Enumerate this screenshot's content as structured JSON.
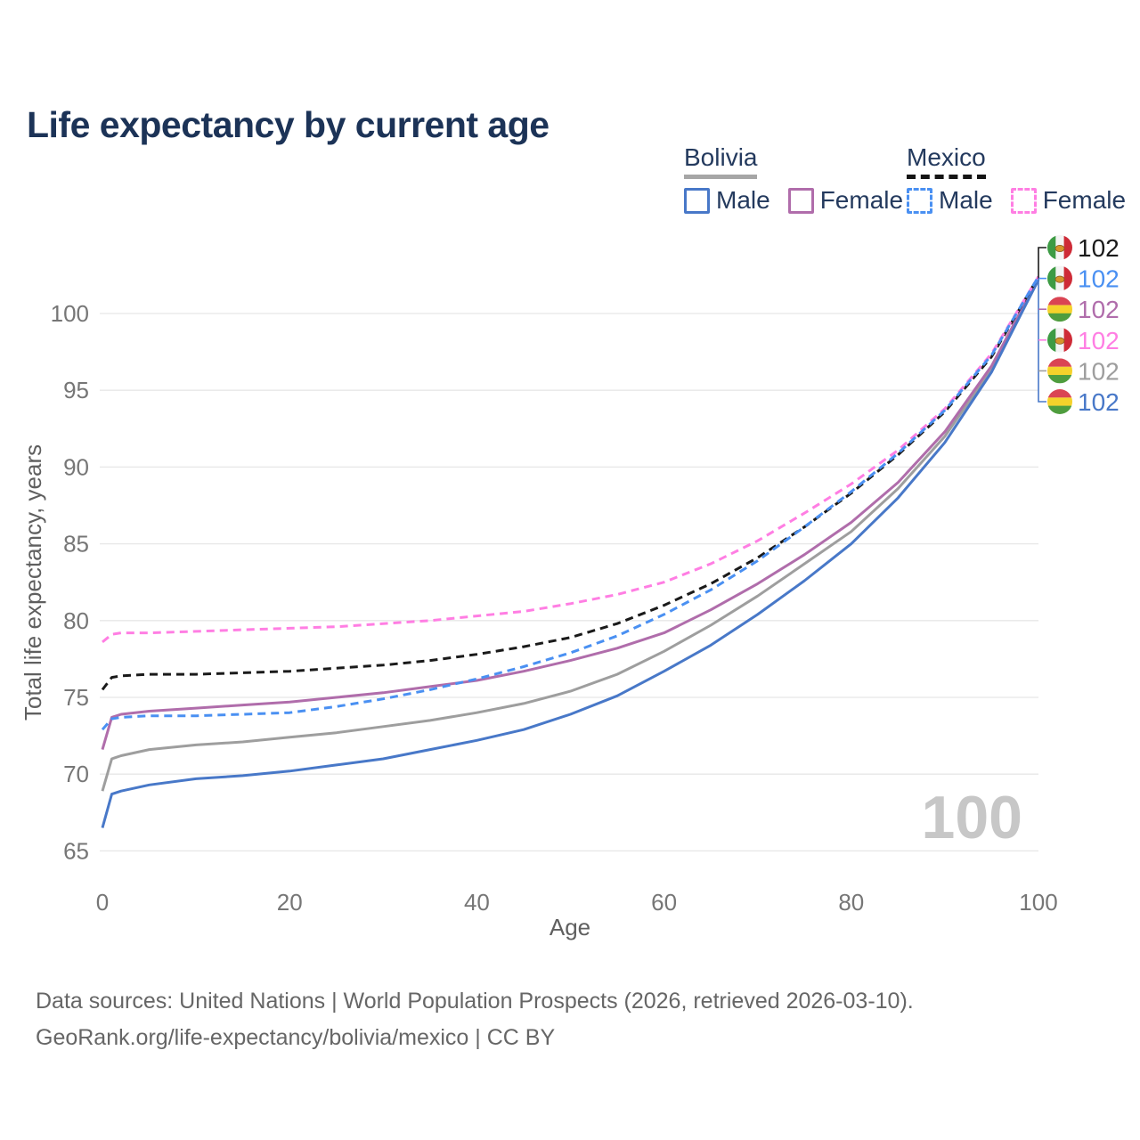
{
  "title": "Life expectancy by current age",
  "watermark": "100",
  "legend": {
    "groups": [
      {
        "name": "Bolivia",
        "line_style": "solid",
        "underline_color": "#a6a6a6",
        "items": [
          {
            "label": "Male",
            "color": "#4878c8"
          },
          {
            "label": "Female",
            "color": "#b06dab"
          }
        ]
      },
      {
        "name": "Mexico",
        "line_style": "dashed",
        "underline_color": "#141414",
        "items": [
          {
            "label": "Male",
            "color": "#4a90f2"
          },
          {
            "label": "Female",
            "color": "#ff7ee3"
          }
        ]
      }
    ]
  },
  "footer": {
    "line1": "Data sources: United Nations | World Population Prospects (2026, retrieved 2026-03-10).",
    "line2": "GeoRank.org/life-expectancy/bolivia/mexico | CC BY"
  },
  "colors": {
    "title_text": "#1c3357",
    "legend_text": "#243a5e",
    "axis_text": "#767676",
    "grid": "#e7e7e7",
    "watermark": "#c7c7c7",
    "footer_text": "#666666"
  },
  "flags": {
    "mexico": {
      "left": "#3d9b44",
      "mid": "#f4f4f4",
      "right": "#ce2b37",
      "emblem": "#d6952b"
    },
    "bolivia": {
      "top": "#da4453",
      "mid": "#f5d22b",
      "bottom": "#4f9d3e"
    }
  },
  "chart_data": {
    "type": "line",
    "title": "Life expectancy by current age",
    "xlabel": "Age",
    "ylabel": "Total life expectancy, years",
    "xlim": [
      0,
      100
    ],
    "ylim": [
      65,
      103
    ],
    "x_ticks": [
      0,
      20,
      40,
      60,
      80,
      100
    ],
    "y_ticks": [
      65,
      70,
      75,
      80,
      85,
      90,
      95,
      100
    ],
    "grid": "horizontal",
    "legend_position": "top-right",
    "ages": [
      0,
      1,
      2,
      5,
      10,
      15,
      20,
      25,
      30,
      35,
      40,
      45,
      50,
      55,
      60,
      65,
      70,
      75,
      80,
      85,
      90,
      95,
      100
    ],
    "series": [
      {
        "id": "bolivia-average",
        "country": "Bolivia",
        "group": "Both sexes",
        "color": "#9e9e9e",
        "dashed": false,
        "flag": "bolivia",
        "end_label": "102",
        "row": 4,
        "values": [
          68.9,
          71.0,
          71.2,
          71.6,
          71.9,
          72.1,
          72.4,
          72.7,
          73.1,
          73.5,
          74.0,
          74.6,
          75.4,
          76.5,
          78.0,
          79.7,
          81.6,
          83.7,
          85.8,
          88.6,
          92.0,
          96.4,
          102.2
        ]
      },
      {
        "id": "bolivia-female",
        "country": "Bolivia",
        "group": "Female",
        "color": "#b06dab",
        "dashed": false,
        "flag": "bolivia",
        "end_label": "102",
        "row": 2,
        "values": [
          71.6,
          73.7,
          73.9,
          74.1,
          74.3,
          74.5,
          74.7,
          75.0,
          75.3,
          75.7,
          76.1,
          76.7,
          77.4,
          78.2,
          79.2,
          80.7,
          82.4,
          84.3,
          86.4,
          89.0,
          92.3,
          96.6,
          102.3
        ]
      },
      {
        "id": "bolivia-male",
        "country": "Bolivia",
        "group": "Male",
        "color": "#4878c8",
        "dashed": false,
        "flag": "bolivia",
        "end_label": "102",
        "row": 5,
        "values": [
          66.5,
          68.7,
          68.9,
          69.3,
          69.7,
          69.9,
          70.2,
          70.6,
          71.0,
          71.6,
          72.2,
          72.9,
          73.9,
          75.1,
          76.7,
          78.4,
          80.4,
          82.6,
          85.0,
          88.0,
          91.6,
          96.2,
          102.2
        ]
      },
      {
        "id": "mexico-average",
        "country": "Mexico",
        "group": "Both sexes",
        "color": "#1a1a1a",
        "dashed": true,
        "flag": "mexico",
        "end_label": "102",
        "row": 0,
        "values": [
          75.5,
          76.3,
          76.4,
          76.5,
          76.5,
          76.6,
          76.7,
          76.9,
          77.1,
          77.4,
          77.8,
          78.3,
          78.9,
          79.8,
          81.0,
          82.4,
          84.1,
          86.1,
          88.3,
          90.8,
          93.6,
          97.2,
          102.4
        ]
      },
      {
        "id": "mexico-female",
        "country": "Mexico",
        "group": "Female",
        "color": "#ff7ee3",
        "dashed": true,
        "flag": "mexico",
        "end_label": "102",
        "row": 3,
        "values": [
          78.6,
          79.1,
          79.2,
          79.2,
          79.3,
          79.4,
          79.5,
          79.6,
          79.8,
          80.0,
          80.3,
          80.6,
          81.1,
          81.7,
          82.5,
          83.7,
          85.2,
          87.0,
          88.9,
          91.1,
          93.8,
          97.4,
          102.4
        ]
      },
      {
        "id": "mexico-male",
        "country": "Mexico",
        "group": "Male",
        "color": "#4a90f2",
        "dashed": true,
        "flag": "mexico",
        "end_label": "102",
        "row": 1,
        "values": [
          72.9,
          73.6,
          73.7,
          73.8,
          73.8,
          73.9,
          74.0,
          74.4,
          74.9,
          75.5,
          76.2,
          77.0,
          77.9,
          79.0,
          80.4,
          82.0,
          83.9,
          86.1,
          88.4,
          90.9,
          93.7,
          97.3,
          102.4
        ]
      }
    ]
  }
}
